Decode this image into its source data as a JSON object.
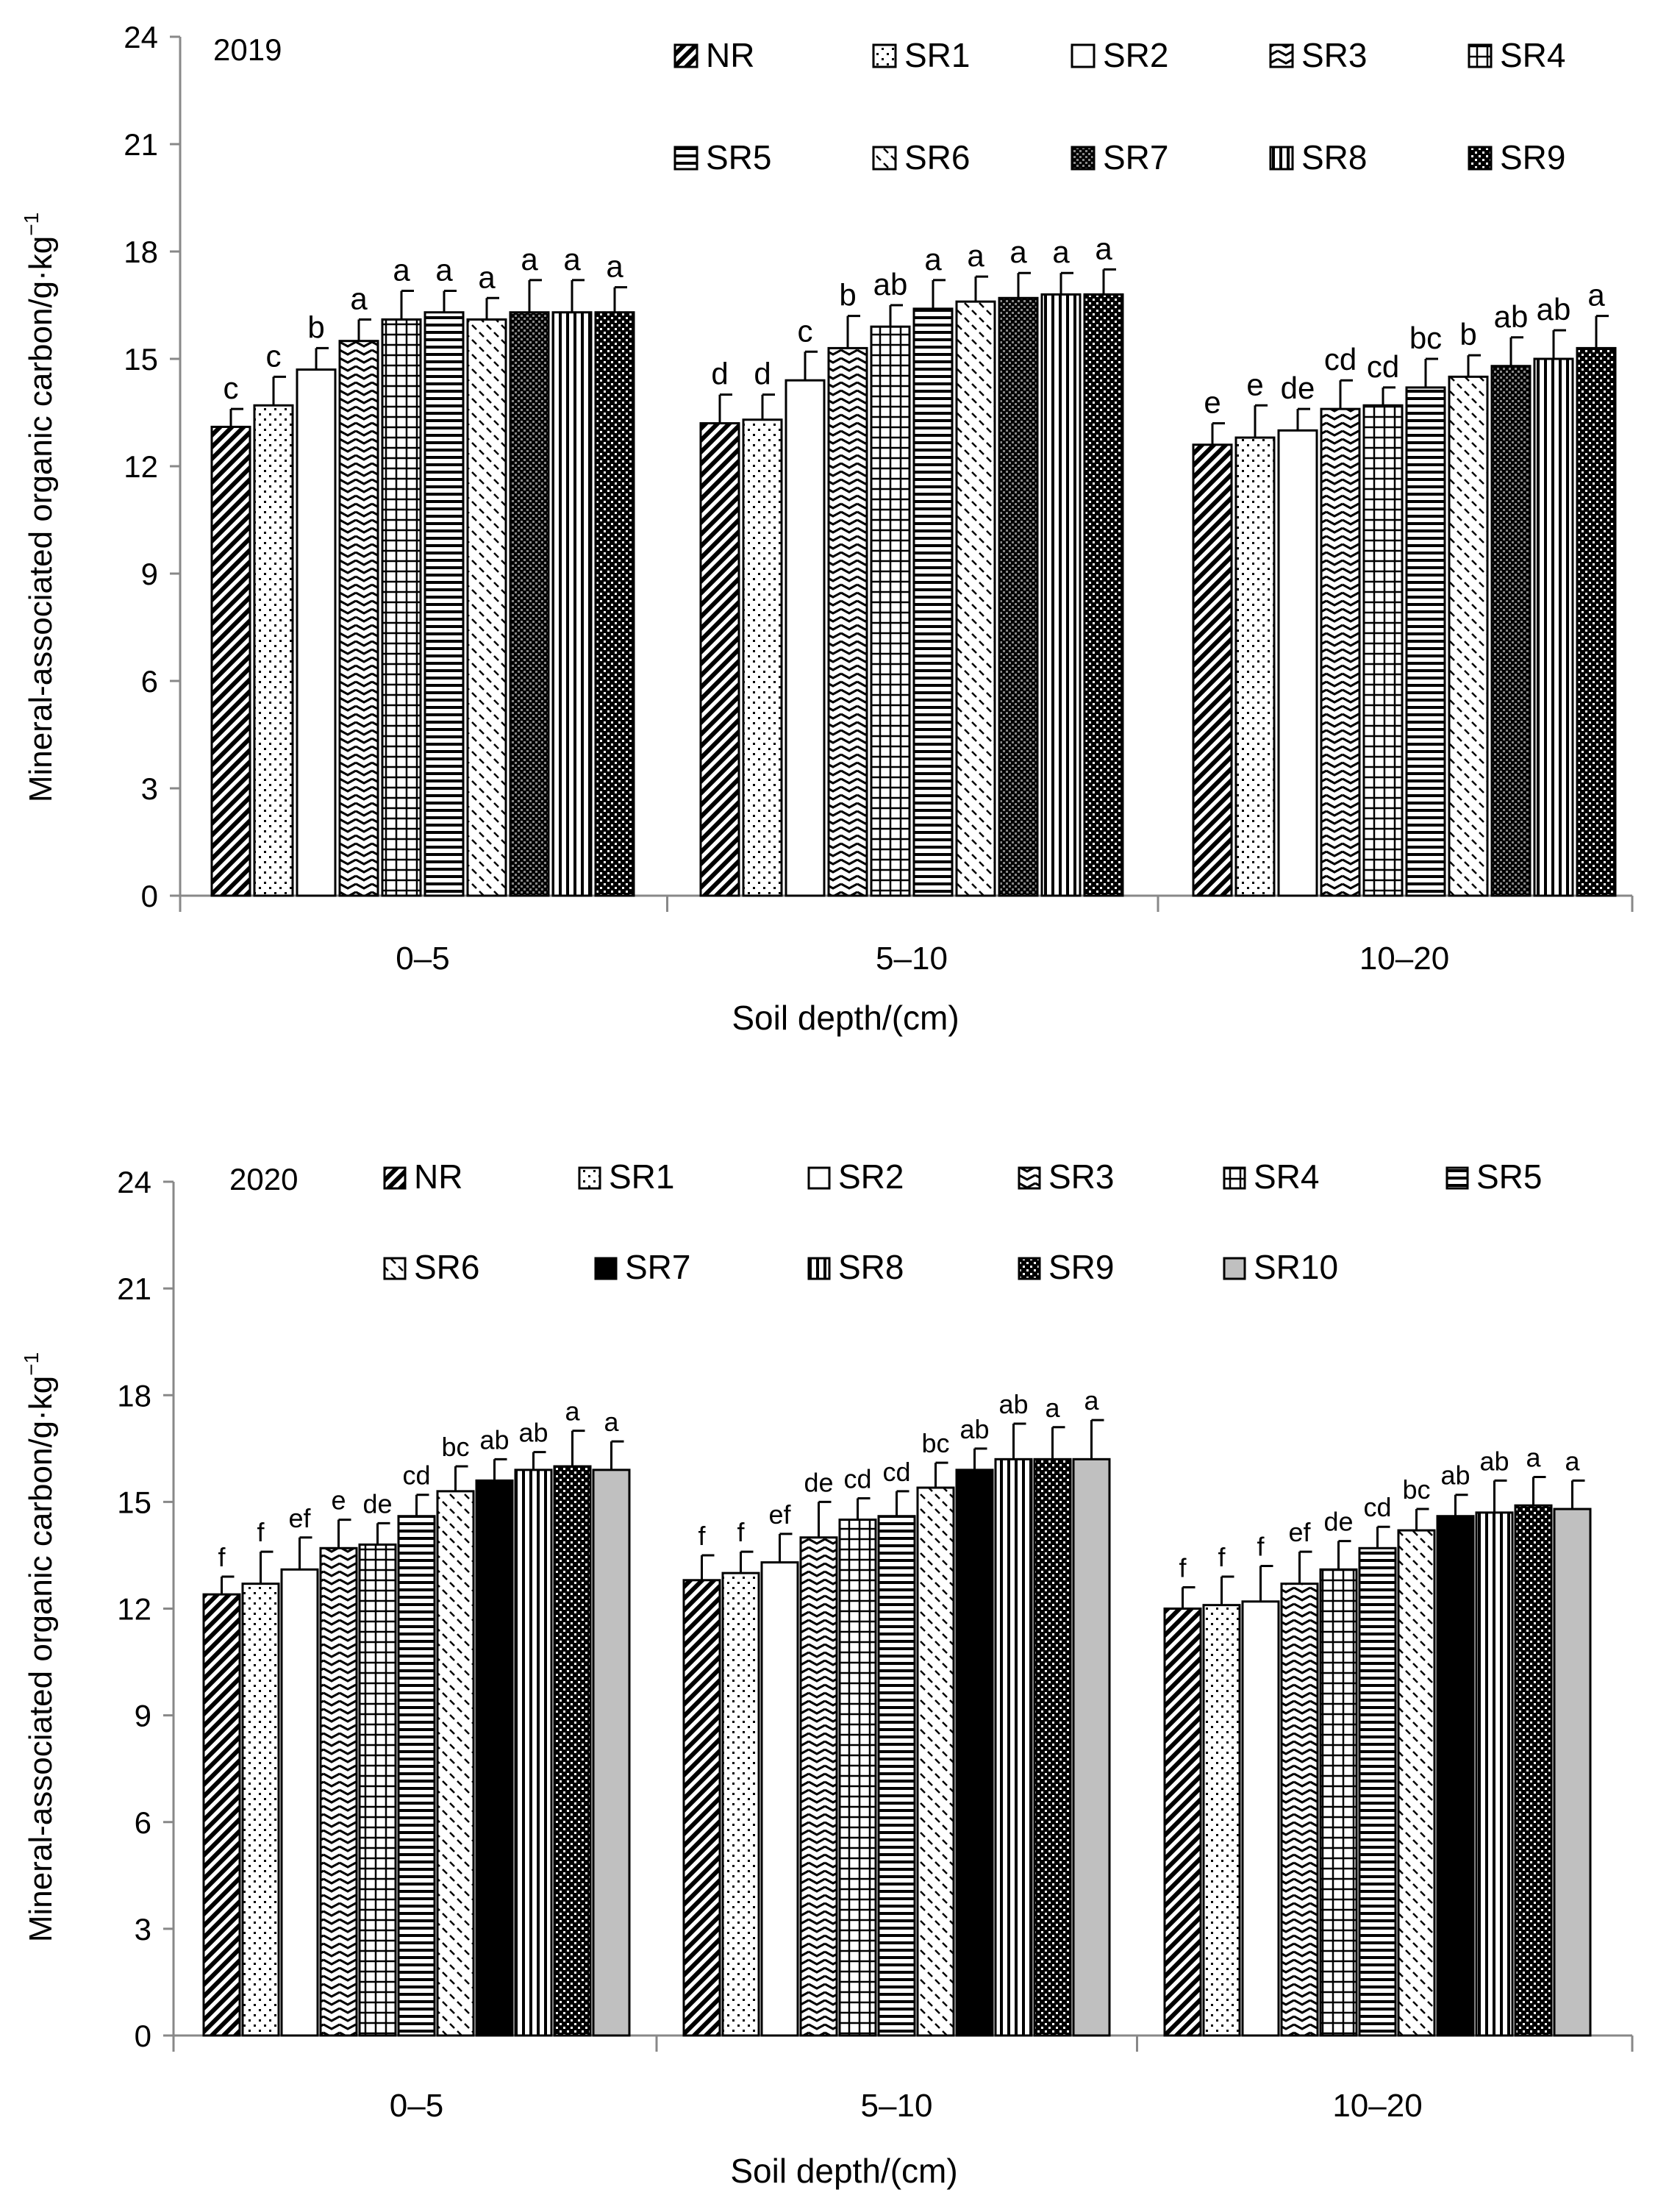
{
  "colors": {
    "ink": "#000000",
    "background": "#ffffff",
    "sr10_fill": "#c0c0c0"
  },
  "y_axis_label": "Mineral-associated organic carbon/g·kg",
  "y_axis_label_superscript": "−1",
  "x_axis_label": "Soil depth/(cm)",
  "chart_data": [
    {
      "type": "bar",
      "title": "2019",
      "xlabel": "Soil depth/(cm)",
      "ylabel": "Mineral-associated organic carbon/g·kg⁻¹",
      "ylim": [
        0,
        24
      ],
      "yticks": [
        0,
        3,
        6,
        9,
        12,
        15,
        18,
        21,
        24
      ],
      "legend_position": "top-right",
      "categories": [
        "0–5",
        "5–10",
        "10–20"
      ],
      "series": [
        {
          "name": "NR",
          "pattern": "diag-bold",
          "values": [
            13.1,
            13.2,
            12.6
          ],
          "errors": [
            0.5,
            0.8,
            0.6
          ],
          "letters": [
            "c",
            "d",
            "e"
          ]
        },
        {
          "name": "SR1",
          "pattern": "dots",
          "values": [
            13.7,
            13.3,
            12.8
          ],
          "errors": [
            0.8,
            0.7,
            0.9
          ],
          "letters": [
            "c",
            "d",
            "e"
          ]
        },
        {
          "name": "SR2",
          "pattern": "white",
          "values": [
            14.7,
            14.4,
            13.0
          ],
          "errors": [
            0.6,
            0.8,
            0.6
          ],
          "letters": [
            "b",
            "c",
            "de"
          ]
        },
        {
          "name": "SR3",
          "pattern": "wave",
          "values": [
            15.5,
            15.3,
            13.6
          ],
          "errors": [
            0.6,
            0.9,
            0.8
          ],
          "letters": [
            "a",
            "b",
            "cd"
          ]
        },
        {
          "name": "SR4",
          "pattern": "grid",
          "values": [
            16.1,
            15.9,
            13.7
          ],
          "errors": [
            0.8,
            0.6,
            0.5
          ],
          "letters": [
            "a",
            "ab",
            "cd"
          ]
        },
        {
          "name": "SR5",
          "pattern": "hlines",
          "values": [
            16.3,
            16.4,
            14.2
          ],
          "errors": [
            0.6,
            0.8,
            0.8
          ],
          "letters": [
            "a",
            "a",
            "bc"
          ]
        },
        {
          "name": "SR6",
          "pattern": "dashes",
          "values": [
            16.1,
            16.6,
            14.5
          ],
          "errors": [
            0.6,
            0.7,
            0.6
          ],
          "letters": [
            "a",
            "a",
            "b"
          ]
        },
        {
          "name": "SR7",
          "pattern": "checker",
          "values": [
            16.3,
            16.7,
            14.8
          ],
          "errors": [
            0.9,
            0.7,
            0.8
          ],
          "letters": [
            "a",
            "a",
            "ab"
          ]
        },
        {
          "name": "SR8",
          "pattern": "vlines",
          "values": [
            16.3,
            16.8,
            15.0
          ],
          "errors": [
            0.9,
            0.6,
            0.8
          ],
          "letters": [
            "a",
            "a",
            "ab"
          ]
        },
        {
          "name": "SR9",
          "pattern": "dense-check",
          "values": [
            16.3,
            16.8,
            15.3
          ],
          "errors": [
            0.7,
            0.7,
            0.9
          ],
          "letters": [
            "a",
            "a",
            "a"
          ]
        }
      ]
    },
    {
      "type": "bar",
      "title": "2020",
      "xlabel": "Soil depth/(cm)",
      "ylabel": "Mineral-associated organic carbon/g·kg⁻¹",
      "ylim": [
        0,
        24
      ],
      "yticks": [
        0,
        3,
        6,
        9,
        12,
        15,
        18,
        21,
        24
      ],
      "legend_position": "top-right",
      "categories": [
        "0–5",
        "5–10",
        "10–20"
      ],
      "series": [
        {
          "name": "NR",
          "pattern": "diag-bold",
          "values": [
            12.4,
            12.8,
            12.0
          ],
          "errors": [
            0.5,
            0.7,
            0.6
          ],
          "letters": [
            "f",
            "f",
            "f"
          ]
        },
        {
          "name": "SR1",
          "pattern": "dots",
          "values": [
            12.7,
            13.0,
            12.1
          ],
          "errors": [
            0.9,
            0.6,
            0.8
          ],
          "letters": [
            "f",
            "f",
            "f"
          ]
        },
        {
          "name": "SR2",
          "pattern": "white",
          "values": [
            13.1,
            13.3,
            12.2
          ],
          "errors": [
            0.9,
            0.8,
            1.0
          ],
          "letters": [
            "ef",
            "ef",
            "f"
          ]
        },
        {
          "name": "SR3",
          "pattern": "wave",
          "values": [
            13.7,
            14.0,
            12.7
          ],
          "errors": [
            0.8,
            1.0,
            0.9
          ],
          "letters": [
            "e",
            "de",
            "ef"
          ]
        },
        {
          "name": "SR4",
          "pattern": "grid",
          "values": [
            13.8,
            14.5,
            13.1
          ],
          "errors": [
            0.6,
            0.6,
            0.8
          ],
          "letters": [
            "de",
            "cd",
            "de"
          ]
        },
        {
          "name": "SR5",
          "pattern": "hlines",
          "values": [
            14.6,
            14.6,
            13.7
          ],
          "errors": [
            0.6,
            0.7,
            0.6
          ],
          "letters": [
            "cd",
            "cd",
            "cd"
          ]
        },
        {
          "name": "SR6",
          "pattern": "dashes",
          "values": [
            15.3,
            15.4,
            14.2
          ],
          "errors": [
            0.7,
            0.7,
            0.6
          ],
          "letters": [
            "bc",
            "bc",
            "bc"
          ]
        },
        {
          "name": "SR7",
          "pattern": "solid",
          "values": [
            15.6,
            15.9,
            14.6
          ],
          "errors": [
            0.6,
            0.6,
            0.6
          ],
          "letters": [
            "ab",
            "ab",
            "ab"
          ]
        },
        {
          "name": "SR8",
          "pattern": "vlines",
          "values": [
            15.9,
            16.2,
            14.7
          ],
          "errors": [
            0.5,
            1.0,
            0.9
          ],
          "letters": [
            "ab",
            "ab",
            "ab"
          ]
        },
        {
          "name": "SR9",
          "pattern": "dense-check",
          "values": [
            16.0,
            16.2,
            14.9
          ],
          "errors": [
            1.0,
            0.9,
            0.8
          ],
          "letters": [
            "a",
            "a",
            "a"
          ]
        },
        {
          "name": "SR10",
          "pattern": "gray",
          "values": [
            15.9,
            16.2,
            14.8
          ],
          "errors": [
            0.8,
            1.1,
            0.8
          ],
          "letters": [
            "a",
            "a",
            "a"
          ]
        }
      ]
    }
  ]
}
